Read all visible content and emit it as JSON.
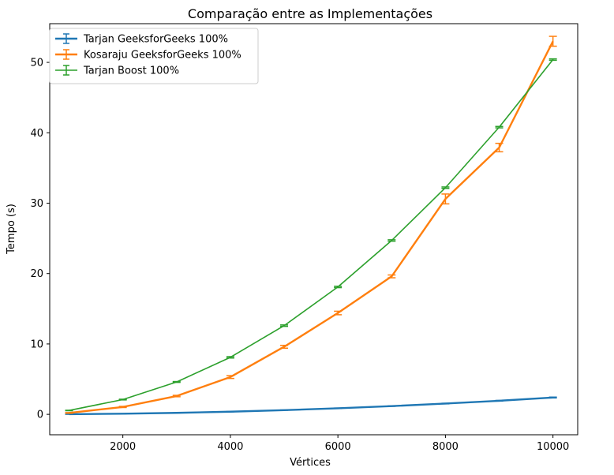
{
  "chart_data": {
    "type": "line",
    "title": "Comparação entre as Implementações",
    "xlabel": "Vértices",
    "ylabel": "Tempo (s)",
    "xlim": [
      640,
      10460
    ],
    "ylim": [
      -2.9,
      55.5
    ],
    "xticks": [
      2000,
      4000,
      6000,
      8000,
      10000
    ],
    "yticks": [
      0,
      10,
      20,
      30,
      40,
      50
    ],
    "grid": false,
    "legend_position": "top-left",
    "x": [
      1000,
      2000,
      3000,
      4000,
      5000,
      6000,
      7000,
      8000,
      9000,
      10000
    ],
    "series": [
      {
        "name": "Tarjan GeeksforGeeks 100%",
        "color": "#1f77b4",
        "x": [
          1000,
          2000,
          3000,
          4000,
          5000,
          6000,
          7000,
          8000,
          9000,
          10000
        ],
        "values": [
          0.02,
          0.09,
          0.21,
          0.38,
          0.6,
          0.86,
          1.17,
          1.53,
          1.93,
          2.39
        ],
        "errors": [
          0.01,
          0.01,
          0.01,
          0.02,
          0.02,
          0.03,
          0.03,
          0.04,
          0.05,
          0.06
        ]
      },
      {
        "name": "Kosaraju GeeksforGeeks 100%",
        "color": "#ff7f0e",
        "x": [
          1000,
          2000,
          3000,
          4000,
          5000,
          6000,
          7000,
          8000,
          9000,
          10000
        ],
        "values": [
          0.2,
          1.05,
          2.6,
          5.3,
          9.6,
          14.4,
          19.6,
          30.6,
          37.9,
          53.0
        ],
        "errors": [
          0.05,
          0.08,
          0.1,
          0.2,
          0.2,
          0.25,
          0.2,
          0.7,
          0.6,
          0.7
        ]
      },
      {
        "name": "Tarjan Boost 100%",
        "color": "#2ca02c",
        "x": [
          1000,
          2000,
          3000,
          4000,
          5000,
          6000,
          7000,
          8000,
          9000,
          10000
        ],
        "values": [
          0.55,
          2.1,
          4.6,
          8.1,
          12.6,
          18.1,
          24.7,
          32.2,
          40.8,
          50.4
        ],
        "errors": [
          0.03,
          0.05,
          0.06,
          0.1,
          0.1,
          0.1,
          0.1,
          0.1,
          0.1,
          0.1
        ]
      }
    ]
  }
}
